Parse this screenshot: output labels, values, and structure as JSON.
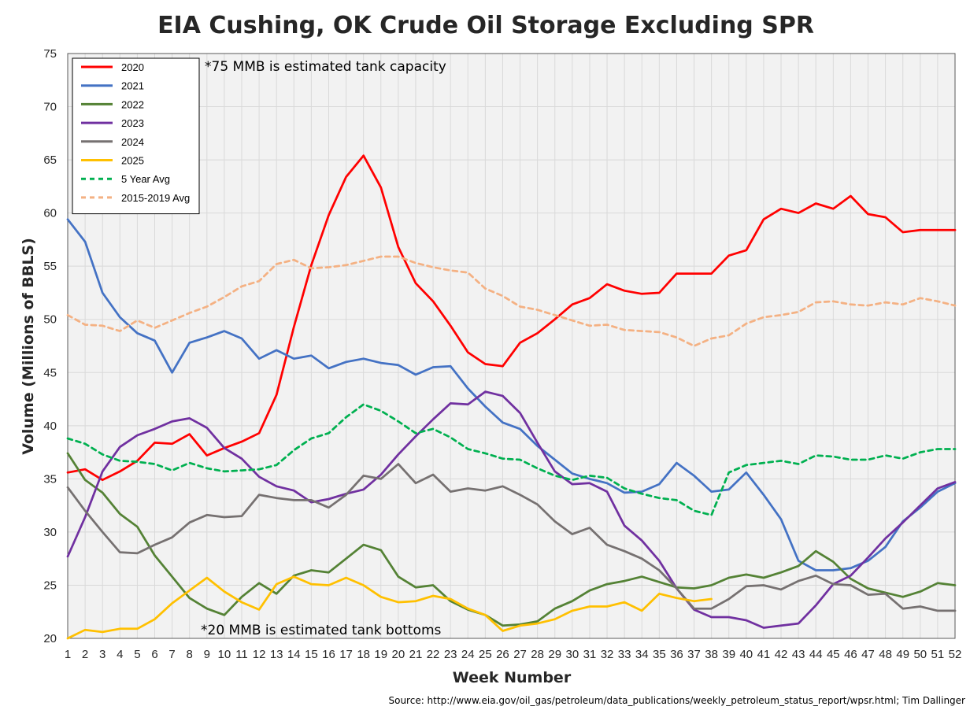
{
  "chart_data": {
    "type": "line",
    "title": "EIA Cushing, OK Crude Oil Storage Excluding SPR",
    "xlabel": "Week Number",
    "ylabel": "Volume (Millions of BBLS)",
    "xlim": [
      1,
      52
    ],
    "ylim": [
      20,
      75
    ],
    "yticks": [
      20,
      25,
      30,
      35,
      40,
      45,
      50,
      55,
      60,
      65,
      70,
      75
    ],
    "xticks": [
      1,
      2,
      3,
      4,
      5,
      6,
      7,
      8,
      9,
      10,
      11,
      12,
      13,
      14,
      15,
      16,
      17,
      18,
      19,
      20,
      21,
      22,
      23,
      24,
      25,
      26,
      27,
      28,
      29,
      30,
      31,
      32,
      33,
      34,
      35,
      36,
      37,
      38,
      39,
      40,
      41,
      42,
      43,
      44,
      45,
      46,
      47,
      48,
      49,
      50,
      51,
      52
    ],
    "grid": true,
    "legend_position": "top-left",
    "annotations": [
      "*75 MMB is estimated tank capacity",
      "*20 MMB is estimated tank bottoms"
    ],
    "source": "Source: http://www.eia.gov/oil_gas/petroleum/data_publications/weekly_petroleum_status_report/wpsr.html; Tim Dallinger",
    "series": [
      {
        "name": "2020",
        "color": "#ff0000",
        "dash": false,
        "values": [
          35.6,
          35.9,
          34.9,
          35.7,
          36.7,
          38.4,
          38.3,
          39.2,
          37.2,
          37.9,
          38.5,
          39.3,
          42.9,
          49.3,
          55.1,
          59.8,
          63.4,
          65.4,
          62.4,
          56.8,
          53.4,
          51.7,
          49.4,
          46.9,
          45.8,
          45.6,
          47.8,
          48.7,
          50.0,
          51.4,
          52.0,
          53.3,
          52.7,
          52.4,
          52.5,
          54.3,
          54.3,
          54.3,
          56.0,
          56.5,
          59.4,
          60.4,
          60.0,
          60.9,
          60.4,
          61.6,
          59.9,
          59.6,
          58.2,
          58.4,
          58.4,
          58.4
        ]
      },
      {
        "name": "2021",
        "color": "#4472c4",
        "dash": false,
        "values": [
          59.4,
          57.3,
          52.5,
          50.2,
          48.7,
          48.0,
          45.0,
          47.8,
          48.3,
          48.9,
          48.2,
          46.3,
          47.1,
          46.3,
          46.6,
          45.4,
          46.0,
          46.3,
          45.9,
          45.7,
          44.8,
          45.5,
          45.6,
          43.5,
          41.8,
          40.3,
          39.7,
          38.1,
          36.8,
          35.5,
          35.0,
          34.6,
          33.7,
          33.8,
          34.5,
          36.5,
          35.3,
          33.8,
          34.0,
          35.6,
          33.5,
          31.2,
          27.3,
          26.4,
          26.4,
          26.6,
          27.3,
          28.6,
          31.0,
          32.3,
          33.8,
          34.6
        ]
      },
      {
        "name": "2022",
        "color": "#548235",
        "dash": false,
        "values": [
          37.4,
          34.9,
          33.7,
          31.7,
          30.5,
          27.8,
          25.8,
          23.8,
          22.8,
          22.2,
          23.9,
          25.2,
          24.2,
          25.9,
          26.4,
          26.2,
          27.5,
          28.8,
          28.3,
          25.8,
          24.8,
          25.0,
          23.5,
          22.7,
          22.2,
          21.2,
          21.3,
          21.6,
          22.8,
          23.5,
          24.5,
          25.1,
          25.4,
          25.8,
          25.3,
          24.8,
          24.7,
          25.0,
          25.7,
          26.0,
          25.7,
          26.2,
          26.8,
          28.2,
          27.2,
          25.6,
          24.7,
          24.3,
          23.9,
          24.4,
          25.2,
          25.0
        ]
      },
      {
        "name": "2023",
        "color": "#7030a0",
        "dash": false,
        "values": [
          27.7,
          31.4,
          35.7,
          38.0,
          39.1,
          39.7,
          40.4,
          40.7,
          39.8,
          37.9,
          36.9,
          35.2,
          34.3,
          33.9,
          32.8,
          33.1,
          33.6,
          34.0,
          35.4,
          37.3,
          39.0,
          40.6,
          42.1,
          42.0,
          43.2,
          42.8,
          41.2,
          38.4,
          35.7,
          34.5,
          34.6,
          33.8,
          30.6,
          29.2,
          27.3,
          24.7,
          22.7,
          22.0,
          22.0,
          21.7,
          21.0,
          21.2,
          21.4,
          23.1,
          25.1,
          25.9,
          27.6,
          29.4,
          30.9,
          32.5,
          34.1,
          34.7
        ]
      },
      {
        "name": "2024",
        "color": "#767171",
        "dash": false,
        "values": [
          34.2,
          32.0,
          30.0,
          28.1,
          28.0,
          28.8,
          29.5,
          30.9,
          31.6,
          31.4,
          31.5,
          33.5,
          33.2,
          33.0,
          33.0,
          32.3,
          33.5,
          35.3,
          35.0,
          36.4,
          34.6,
          35.4,
          33.8,
          34.1,
          33.9,
          34.3,
          33.5,
          32.6,
          31.0,
          29.8,
          30.4,
          28.8,
          28.2,
          27.5,
          26.4,
          24.7,
          22.8,
          22.8,
          23.7,
          24.9,
          25.0,
          24.6,
          25.4,
          25.9,
          25.1,
          25.0,
          24.1,
          24.2,
          22.8,
          23.0,
          22.6,
          22.6
        ]
      },
      {
        "name": "2025",
        "color": "#ffc000",
        "dash": false,
        "values": [
          20.0,
          20.8,
          20.6,
          20.9,
          20.9,
          21.8,
          23.3,
          24.5,
          25.7,
          24.4,
          23.4,
          22.7,
          25.1,
          25.8,
          25.1,
          25.0,
          25.7,
          25.0,
          23.9,
          23.4,
          23.5,
          24.0,
          23.7,
          22.8,
          22.2,
          20.7,
          21.2,
          21.4,
          21.8,
          22.6,
          23.0,
          23.0,
          23.4,
          22.6,
          24.2,
          23.8,
          23.5,
          23.7
        ]
      },
      {
        "name": "5 Year Avg",
        "color": "#00b050",
        "dash": true,
        "values": [
          38.8,
          38.3,
          37.3,
          36.7,
          36.6,
          36.4,
          35.8,
          36.5,
          36.0,
          35.7,
          35.8,
          35.9,
          36.3,
          37.7,
          38.8,
          39.3,
          40.8,
          42.0,
          41.4,
          40.4,
          39.3,
          39.7,
          38.9,
          37.8,
          37.4,
          36.9,
          36.8,
          36.0,
          35.3,
          34.9,
          35.3,
          35.1,
          34.1,
          33.6,
          33.2,
          33.0,
          32.0,
          31.6,
          35.6,
          36.3,
          36.5,
          36.7,
          36.4,
          37.2,
          37.1,
          36.8,
          36.8,
          37.2,
          36.9,
          37.5,
          37.8,
          37.8
        ]
      },
      {
        "name": "2015-2019 Avg",
        "color": "#f4b183",
        "dash": true,
        "values": [
          50.4,
          49.5,
          49.4,
          48.9,
          49.9,
          49.2,
          49.9,
          50.6,
          51.2,
          52.1,
          53.1,
          53.6,
          55.2,
          55.6,
          54.8,
          54.9,
          55.1,
          55.5,
          55.9,
          55.9,
          55.3,
          54.9,
          54.6,
          54.4,
          52.9,
          52.2,
          51.2,
          50.9,
          50.4,
          49.9,
          49.4,
          49.5,
          49.0,
          48.9,
          48.8,
          48.3,
          47.5,
          48.2,
          48.5,
          49.6,
          50.2,
          50.4,
          50.7,
          51.6,
          51.7,
          51.4,
          51.3,
          51.6,
          51.4,
          52.0,
          51.7,
          51.3
        ]
      }
    ]
  }
}
